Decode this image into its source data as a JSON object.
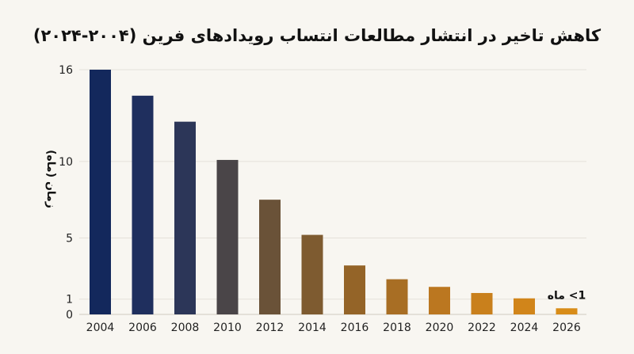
{
  "chart_data": {
    "type": "bar",
    "title": "کاهش تاخیر در انتشار مطالعات انتساب رویدادهای فرین (۲۰۰۴-۲۰۲۴)",
    "xlabel": "",
    "ylabel": "زمان (ماه)",
    "categories": [
      "2004",
      "2006",
      "2008",
      "2010",
      "2012",
      "2014",
      "2016",
      "2018",
      "2020",
      "2022",
      "2024",
      "2026"
    ],
    "values": [
      16,
      14.3,
      12.6,
      10.1,
      7.5,
      5.2,
      3.2,
      2.3,
      1.8,
      1.4,
      1.05,
      0.4
    ],
    "yticks": [
      0,
      1,
      5,
      10,
      16
    ],
    "ylim": [
      0,
      16
    ],
    "grid": true,
    "annotation": {
      "text": "1> ماه",
      "category": "2026"
    },
    "colors": [
      "#13285c",
      "#1f2f5e",
      "#2c3658",
      "#4a4548",
      "#6a5238",
      "#7e5b30",
      "#946428",
      "#a86e24",
      "#bb7720",
      "#c9801c",
      "#d1851a",
      "#d88c18"
    ]
  }
}
